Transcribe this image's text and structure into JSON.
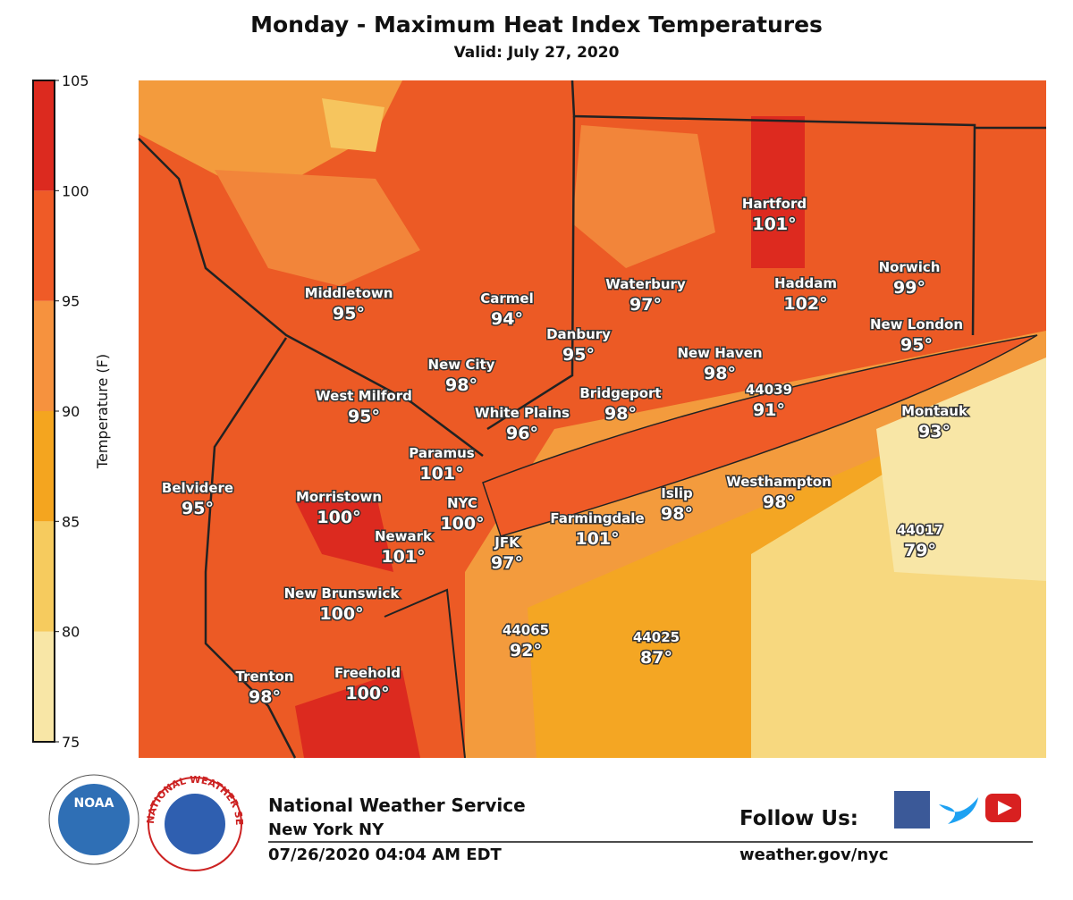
{
  "title": "Monday - Maximum Heat Index Temperatures",
  "subtitle": "Valid: July 27, 2020",
  "colorbar": {
    "label": "Temperature (F)",
    "ticks": [
      75,
      80,
      85,
      90,
      95,
      100,
      105
    ],
    "colors": [
      "#f8e6a6",
      "#f6cb5e",
      "#f4a51f",
      "#f6923e",
      "#ef5b27",
      "#dc2a1f"
    ]
  },
  "stations": [
    {
      "name": "Middletown",
      "temp": "95°"
    },
    {
      "name": "Carmel",
      "temp": "94°"
    },
    {
      "name": "Waterbury",
      "temp": "97°"
    },
    {
      "name": "Hartford",
      "temp": "101°"
    },
    {
      "name": "Haddam",
      "temp": "102°"
    },
    {
      "name": "Norwich",
      "temp": "99°"
    },
    {
      "name": "New London",
      "temp": "95°"
    },
    {
      "name": "Danbury",
      "temp": "95°"
    },
    {
      "name": "New Haven",
      "temp": "98°"
    },
    {
      "name": "44039",
      "temp": "91°"
    },
    {
      "name": "New City",
      "temp": "98°"
    },
    {
      "name": "West Milford",
      "temp": "95°"
    },
    {
      "name": "Bridgeport",
      "temp": "98°"
    },
    {
      "name": "White Plains",
      "temp": "96°"
    },
    {
      "name": "Montauk",
      "temp": "93°"
    },
    {
      "name": "Paramus",
      "temp": "101°"
    },
    {
      "name": "Belvidere",
      "temp": "95°"
    },
    {
      "name": "Morristown",
      "temp": "100°"
    },
    {
      "name": "NYC",
      "temp": "100°"
    },
    {
      "name": "Islip",
      "temp": "98°"
    },
    {
      "name": "Westhampton",
      "temp": "98°"
    },
    {
      "name": "Farmingdale",
      "temp": "101°"
    },
    {
      "name": "44017",
      "temp": "79°"
    },
    {
      "name": "Newark",
      "temp": "101°"
    },
    {
      "name": "JFK",
      "temp": "97°"
    },
    {
      "name": "New Brunswick",
      "temp": "100°"
    },
    {
      "name": "44065",
      "temp": "92°"
    },
    {
      "name": "44025",
      "temp": "87°"
    },
    {
      "name": "Trenton",
      "temp": "98°"
    },
    {
      "name": "Freehold",
      "temp": "100°"
    }
  ],
  "footer": {
    "noaa_logo": "NOAA",
    "nws_logo": "NATIONAL WEATHER SERVICE",
    "agency": "National Weather Service",
    "office": "New York NY",
    "issued": "07/26/2020 04:04 AM EDT",
    "follow": "Follow Us:",
    "url": "weather.gov/nyc"
  }
}
